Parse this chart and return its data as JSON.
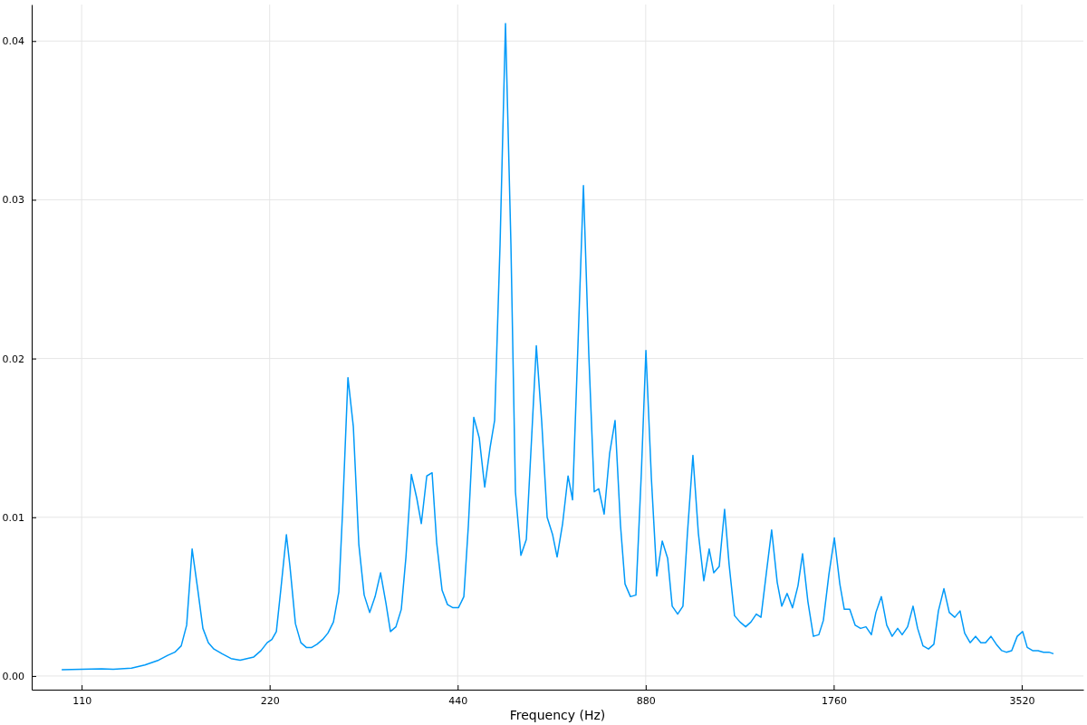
{
  "chart_data": {
    "type": "line",
    "xlabel": "Frequency (Hz)",
    "log": "x",
    "grid": true,
    "xlim": [
      91.5,
      4418
    ],
    "ylim": [
      -0.00086,
      0.0423
    ],
    "xticks": [
      110,
      220,
      440,
      880,
      1760,
      3520
    ],
    "yticks": [
      {
        "value": 0,
        "label": "0.00"
      },
      {
        "value": 0.01,
        "label": "0.01"
      },
      {
        "value": 0.02,
        "label": "0.02"
      },
      {
        "value": 0.03,
        "label": "0.03"
      },
      {
        "value": 0.04,
        "label": "0.04"
      }
    ],
    "series": [
      {
        "color": "#009af9",
        "x": [
          102.2,
          110,
          118.4,
          123.6,
          132.2,
          138.9,
          146.1,
          151.1,
          155.1,
          158.8,
          162.0,
          165.3,
          168.7,
          172.0,
          175.5,
          179.1,
          184.6,
          190.8,
          197.3,
          207.5,
          213.1,
          218.0,
          221.8,
          225.5,
          229.3,
          234.0,
          237.1,
          241.9,
          246.8,
          251.8,
          256.9,
          262.0,
          267.4,
          272.7,
          278.3,
          283.9,
          287.8,
          293.6,
          299.5,
          305.6,
          311.7,
          318.1,
          324.5,
          331.1,
          337.7,
          343.4,
          350.4,
          357.4,
          363.6,
          370.9,
          378.4,
          384.8,
          392.6,
          400.4,
          407.2,
          415.4,
          423.8,
          432.4,
          441.2,
          450.1,
          457.7,
          466.9,
          476.4,
          486.1,
          495.9,
          504.2,
          514.4,
          524.8,
          535.4,
          544.4,
          555.5,
          566.7,
          578.2,
          588.0,
          599.8,
          611.9,
          624.4,
          634.8,
          647.8,
          660.9,
          672.0,
          685.6,
          699.5,
          713.4,
          727.9,
          740.0,
          755.0,
          770.3,
          786.0,
          801.9,
          815.4,
          831.9,
          848.8,
          866.0,
          880.7,
          898.5,
          916.6,
          935.3,
          954.3,
          970.3,
          990.0,
          1009.5,
          1026.4,
          1047.3,
          1068.5,
          1090.2,
          1112,
          1131,
          1154,
          1177,
          1197,
          1221,
          1246,
          1272,
          1297,
          1323,
          1346,
          1373,
          1400,
          1429,
          1453,
          1482,
          1512,
          1543,
          1569,
          1600,
          1633,
          1666,
          1694,
          1729,
          1764,
          1800,
          1830,
          1867,
          1905,
          1943,
          1982,
          2022,
          2056,
          2098,
          2140,
          2183,
          2228,
          2265,
          2311,
          2358,
          2398,
          2446,
          2496,
          2546,
          2589,
          2642,
          2695,
          2750,
          2804,
          2852,
          2910,
          2969,
          3028,
          3080,
          3142,
          3205,
          3270,
          3325,
          3392,
          3462,
          3532,
          3592,
          3664,
          3738,
          3814,
          3890,
          3957
        ],
        "values": [
          0.0004,
          0.00043,
          0.00046,
          0.00043,
          0.0005,
          0.0007,
          0.001,
          0.0013,
          0.0015,
          0.0019,
          0.0032,
          0.008,
          0.0055,
          0.003,
          0.0021,
          0.0017,
          0.0014,
          0.0011,
          0.001,
          0.0012,
          0.0016,
          0.0021,
          0.0023,
          0.0028,
          0.0055,
          0.0089,
          0.0069,
          0.0033,
          0.0021,
          0.0018,
          0.0018,
          0.002,
          0.0023,
          0.0027,
          0.0034,
          0.0053,
          0.0103,
          0.0188,
          0.0157,
          0.0083,
          0.0051,
          0.004,
          0.005,
          0.0065,
          0.0046,
          0.0028,
          0.0031,
          0.0042,
          0.0075,
          0.0127,
          0.0112,
          0.0096,
          0.0126,
          0.0128,
          0.0084,
          0.0054,
          0.0045,
          0.0043,
          0.0043,
          0.005,
          0.0095,
          0.0163,
          0.015,
          0.0119,
          0.0144,
          0.0161,
          0.0272,
          0.0411,
          0.0272,
          0.0116,
          0.0076,
          0.0086,
          0.0152,
          0.0208,
          0.016,
          0.01,
          0.0089,
          0.0075,
          0.0096,
          0.0126,
          0.0111,
          0.0209,
          0.0309,
          0.0203,
          0.0116,
          0.0118,
          0.0102,
          0.014,
          0.0161,
          0.0095,
          0.0058,
          0.005,
          0.0051,
          0.0128,
          0.0205,
          0.0125,
          0.0063,
          0.0085,
          0.0074,
          0.0044,
          0.0039,
          0.0044,
          0.009,
          0.0139,
          0.009,
          0.006,
          0.008,
          0.0065,
          0.0069,
          0.0105,
          0.007,
          0.0038,
          0.0034,
          0.0031,
          0.0034,
          0.0039,
          0.0037,
          0.0065,
          0.0092,
          0.0059,
          0.0044,
          0.0052,
          0.0043,
          0.0057,
          0.0077,
          0.0047,
          0.0025,
          0.0026,
          0.0035,
          0.0064,
          0.0087,
          0.0058,
          0.0042,
          0.0042,
          0.0032,
          0.003,
          0.0031,
          0.0026,
          0.004,
          0.005,
          0.0032,
          0.0025,
          0.003,
          0.0026,
          0.0031,
          0.0044,
          0.003,
          0.0019,
          0.0017,
          0.002,
          0.0041,
          0.0055,
          0.004,
          0.0037,
          0.0041,
          0.0027,
          0.0021,
          0.0025,
          0.0021,
          0.0021,
          0.0025,
          0.002,
          0.0016,
          0.0015,
          0.0016,
          0.0025,
          0.0028,
          0.0018,
          0.0016,
          0.0016,
          0.0015,
          0.0015,
          0.0014
        ]
      }
    ]
  }
}
